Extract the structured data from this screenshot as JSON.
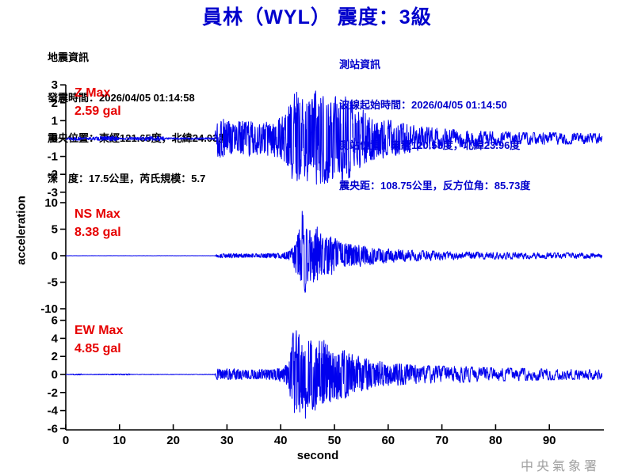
{
  "title": "員林（WYL） 震度：3級",
  "quake_info": {
    "heading": "地震資訊",
    "origin_time": "發震時間：2026/04/05 01:14:58",
    "epicenter": "震央位置：東經121.65度，北緯24.03度",
    "depth_magnitude": "深　度：17.5公里，芮氏規模：5.7"
  },
  "station_info": {
    "heading": "測站資訊",
    "record_start": "波線起始時間：2026/04/05 01:14:50",
    "location": "測站位置：東經120.58度，北緯23.96度",
    "distance_azimuth": "震央距：108.75公里，反方位角：85.73度"
  },
  "signature": "中央氣象署",
  "colors": {
    "title_blue": "#0000cc",
    "station_blue": "#0000cc",
    "trace_blue": "#0000ee",
    "max_red": "#e60000",
    "axis_black": "#000000",
    "signature_gray": "#a0a0a0"
  },
  "chart_data": {
    "type": "line",
    "xlabel": "second",
    "ylabel": "acceleration",
    "x_range": [
      0,
      100
    ],
    "x_ticks": [
      0,
      10,
      20,
      30,
      40,
      50,
      60,
      70,
      80,
      90
    ],
    "grid": false,
    "traces": [
      {
        "id": "Z",
        "label": "Z Max",
        "max_label": "2.59 gal",
        "max_gal": 2.59,
        "ylim": [
          -3,
          3
        ],
        "y_ticks": [
          3,
          2,
          1,
          0,
          -1,
          -2,
          -3
        ],
        "envelope_gal": [
          [
            0,
            0.04
          ],
          [
            1.5,
            0.1
          ],
          [
            2.5,
            0.1
          ],
          [
            3,
            0.04
          ],
          [
            7.5,
            0.13
          ],
          [
            9.5,
            0.13
          ],
          [
            10,
            0.04
          ],
          [
            15.5,
            0.12
          ],
          [
            18,
            0.12
          ],
          [
            18.5,
            0.05
          ],
          [
            27.6,
            0.05
          ],
          [
            28.2,
            0.95
          ],
          [
            30,
            1.05
          ],
          [
            32,
            0.85
          ],
          [
            34,
            1.0
          ],
          [
            36,
            0.8
          ],
          [
            38,
            0.9
          ],
          [
            40,
            1.05
          ],
          [
            41.5,
            1.8
          ],
          [
            43,
            2.45
          ],
          [
            44.5,
            2.0
          ],
          [
            46,
            2.55
          ],
          [
            47.5,
            2.15
          ],
          [
            49,
            2.45
          ],
          [
            50.5,
            1.95
          ],
          [
            52,
            2.3
          ],
          [
            54,
            1.65
          ],
          [
            56,
            1.35
          ],
          [
            58,
            1.05
          ],
          [
            60,
            0.95
          ],
          [
            63,
            0.75
          ],
          [
            66,
            0.6
          ],
          [
            70,
            0.5
          ],
          [
            75,
            0.4
          ],
          [
            80,
            0.35
          ],
          [
            85,
            0.3
          ],
          [
            90,
            0.3
          ],
          [
            95,
            0.27
          ],
          [
            99,
            0.25
          ]
        ],
        "spikes": [
          [
            43.0,
            2.59
          ],
          [
            47.4,
            -2.5
          ],
          [
            50.2,
            2.35
          ]
        ]
      },
      {
        "id": "NS",
        "label": "NS Max",
        "max_label": "8.38 gal",
        "max_gal": 8.38,
        "ylim": [
          -10,
          10
        ],
        "y_ticks": [
          10,
          5,
          0,
          -5,
          -10
        ],
        "envelope_gal": [
          [
            0,
            0.01
          ],
          [
            27.7,
            0.01
          ],
          [
            28.2,
            0.35
          ],
          [
            32,
            0.4
          ],
          [
            36,
            0.35
          ],
          [
            40,
            0.5
          ],
          [
            42,
            1.1
          ],
          [
            43,
            3.2
          ],
          [
            43.8,
            7.5
          ],
          [
            44.6,
            6.2
          ],
          [
            45.5,
            4.2
          ],
          [
            46.5,
            5.2
          ],
          [
            48,
            3.2
          ],
          [
            49.5,
            3.8
          ],
          [
            51,
            2.6
          ],
          [
            53,
            2.2
          ],
          [
            55,
            1.8
          ],
          [
            57,
            1.5
          ],
          [
            60,
            1.2
          ],
          [
            63,
            1.0
          ],
          [
            67,
            0.85
          ],
          [
            72,
            0.7
          ],
          [
            78,
            0.6
          ],
          [
            85,
            0.55
          ],
          [
            92,
            0.5
          ],
          [
            99,
            0.45
          ]
        ],
        "spikes": [
          [
            44.0,
            8.38
          ],
          [
            44.45,
            -6.6
          ],
          [
            46.8,
            5.4
          ]
        ]
      },
      {
        "id": "EW",
        "label": "EW Max",
        "max_label": "4.85 gal",
        "max_gal": 4.85,
        "ylim": [
          -6,
          6
        ],
        "y_ticks": [
          6,
          4,
          2,
          0,
          -2,
          -4,
          -6
        ],
        "envelope_gal": [
          [
            0,
            0.02
          ],
          [
            2.8,
            0.08
          ],
          [
            3.2,
            0.02
          ],
          [
            11.8,
            0.07
          ],
          [
            12.2,
            0.02
          ],
          [
            27.7,
            0.03
          ],
          [
            28.2,
            0.55
          ],
          [
            31,
            0.6
          ],
          [
            34,
            0.5
          ],
          [
            37,
            0.55
          ],
          [
            40,
            0.7
          ],
          [
            41.5,
            1.4
          ],
          [
            42.3,
            4.3
          ],
          [
            43.5,
            4.5
          ],
          [
            44.5,
            3.4
          ],
          [
            45.5,
            4.0
          ],
          [
            47,
            3.4
          ],
          [
            48.5,
            3.8
          ],
          [
            50,
            2.7
          ],
          [
            52,
            2.5
          ],
          [
            54,
            2.0
          ],
          [
            56,
            1.6
          ],
          [
            58,
            1.4
          ],
          [
            60,
            1.2
          ],
          [
            63,
            1.0
          ],
          [
            66,
            0.9
          ],
          [
            70,
            0.85
          ],
          [
            74,
            0.8
          ],
          [
            78,
            0.7
          ],
          [
            82,
            0.65
          ],
          [
            86,
            0.6
          ],
          [
            90,
            0.55
          ],
          [
            95,
            0.5
          ],
          [
            99,
            0.5
          ]
        ],
        "spikes": [
          [
            42.3,
            4.6
          ],
          [
            43.4,
            4.4
          ],
          [
            44.6,
            -4.85
          ]
        ]
      }
    ]
  }
}
